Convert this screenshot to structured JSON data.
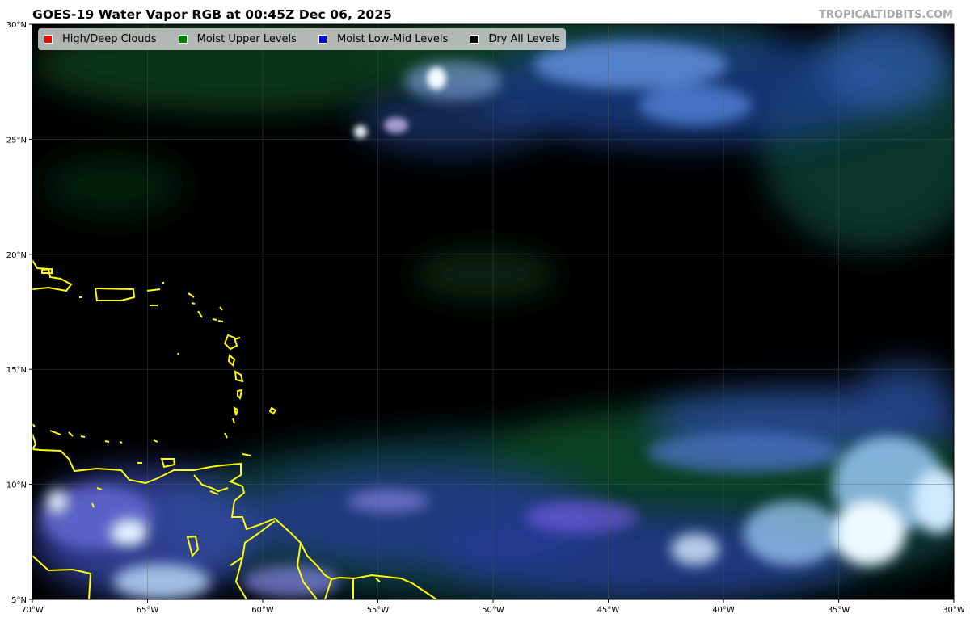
{
  "title": "GOES-19 Water Vapor RGB at 00:45Z Dec 06, 2025",
  "watermark": "TROPICALTIDBITS.COM",
  "legend": [
    {
      "label": "High/Deep Clouds",
      "color": "#ff0000"
    },
    {
      "label": "Moist Upper Levels",
      "color": "#008000"
    },
    {
      "label": "Moist Low-Mid Levels",
      "color": "#0000ff"
    },
    {
      "label": "Dry All Levels",
      "color": "#000000"
    }
  ],
  "axes": {
    "lon_ticks": [
      "70°W",
      "65°W",
      "60°W",
      "55°W",
      "50°W",
      "45°W",
      "40°W",
      "35°W",
      "30°W"
    ],
    "lat_ticks": [
      "5°N",
      "10°N",
      "15°N",
      "20°N",
      "25°N",
      "30°N"
    ],
    "lon_range": [
      -70,
      -30
    ],
    "lat_range": [
      5,
      30
    ]
  },
  "colors": {
    "coastline": "#ffff00",
    "background": "#000000",
    "moist_upper": "#0d4a1e",
    "moist_low_mid": "#3a6cff",
    "high_clouds": "#e8f6ff"
  }
}
